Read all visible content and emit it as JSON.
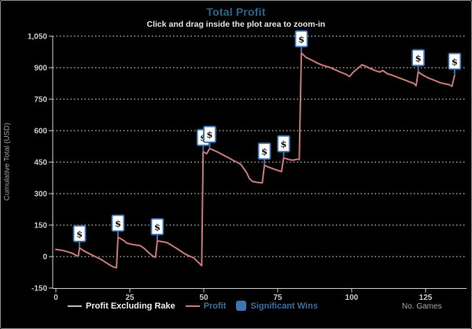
{
  "header": {
    "title": "Total Profit",
    "subtitle": "Click and drag inside the plot area to zoom-in"
  },
  "colors": {
    "background": "#000000",
    "title_blue": "#2c6489",
    "profit_line": "#c67878",
    "excluding_rake_line": "#b9b9b9",
    "significant_wins_blue": "#3d74b2",
    "marker_border": "#3c6fad",
    "marker_fill": "#ffffff",
    "grid": "#f2f2f2",
    "axis": "#cdcdcd",
    "tick_text": "#c9c9c9",
    "legend_link_text": "#3a6fa0"
  },
  "legend": {
    "items": [
      {
        "label": "Profit Excluding Rake",
        "swatch": "line-gray"
      },
      {
        "label": "Profit",
        "swatch": "line-salmon"
      },
      {
        "label": "Significant Wins",
        "swatch": "square-blue"
      }
    ]
  },
  "chart_data": {
    "type": "line",
    "title": "Total Profit",
    "subtitle": "Click and drag inside the plot area to zoom-in",
    "xlabel": "No. Games",
    "ylabel": "Cumulative Total (USD)",
    "xlim": [
      0,
      138
    ],
    "ylim": [
      -150,
      1050
    ],
    "x_ticks": [
      0,
      25,
      50,
      75,
      100,
      125
    ],
    "y_ticks": [
      -150,
      0,
      150,
      300,
      450,
      600,
      750,
      900,
      1050
    ],
    "grid": "horizontal-dotted-white",
    "legend_position": "bottom",
    "series": [
      {
        "name": "Profit Excluding Rake",
        "type": "line",
        "color": "#b9b9b9",
        "visible": false,
        "points": []
      },
      {
        "name": "Profit",
        "type": "line",
        "color": "#c67878",
        "visible": true,
        "points": [
          [
            0,
            34
          ],
          [
            1.5,
            31
          ],
          [
            3,
            27
          ],
          [
            4.5,
            21
          ],
          [
            6,
            13
          ],
          [
            7,
            4
          ],
          [
            7.6,
            3
          ],
          [
            8,
            42
          ],
          [
            9.5,
            27
          ],
          [
            11,
            16
          ],
          [
            13,
            2
          ],
          [
            14.5,
            -8
          ],
          [
            16,
            -20
          ],
          [
            18,
            -38
          ],
          [
            19.5,
            -50
          ],
          [
            20.5,
            -53
          ],
          [
            21,
            92
          ],
          [
            22,
            85
          ],
          [
            23,
            76
          ],
          [
            24,
            64
          ],
          [
            25.5,
            59
          ],
          [
            27,
            55
          ],
          [
            28.5,
            52
          ],
          [
            30,
            38
          ],
          [
            31.5,
            17
          ],
          [
            33,
            0
          ],
          [
            33.7,
            -3
          ],
          [
            34.3,
            75
          ],
          [
            36,
            71
          ],
          [
            37.5,
            67
          ],
          [
            39,
            55
          ],
          [
            40.5,
            42
          ],
          [
            42,
            28
          ],
          [
            43.5,
            14
          ],
          [
            45,
            3
          ],
          [
            46.5,
            -5
          ],
          [
            48,
            -25
          ],
          [
            49.3,
            -43
          ],
          [
            49.8,
            500
          ],
          [
            51,
            490
          ],
          [
            52,
            515
          ],
          [
            53.5,
            506
          ],
          [
            55,
            496
          ],
          [
            57,
            481
          ],
          [
            58.5,
            470
          ],
          [
            60,
            458
          ],
          [
            61.5,
            448
          ],
          [
            62.5,
            440
          ],
          [
            63.5,
            420
          ],
          [
            64.5,
            400
          ],
          [
            65.5,
            370
          ],
          [
            66.5,
            358
          ],
          [
            68,
            354
          ],
          [
            69.8,
            351
          ],
          [
            70.5,
            435
          ],
          [
            72,
            426
          ],
          [
            73.5,
            418
          ],
          [
            75,
            411
          ],
          [
            76.3,
            405
          ],
          [
            77,
            470
          ],
          [
            78.5,
            464
          ],
          [
            80,
            459
          ],
          [
            81.5,
            464
          ],
          [
            82.3,
            462
          ],
          [
            83,
            970
          ],
          [
            84.5,
            950
          ],
          [
            86.5,
            936
          ],
          [
            88.5,
            921
          ],
          [
            90.5,
            910
          ],
          [
            92.5,
            902
          ],
          [
            94.5,
            890
          ],
          [
            96.5,
            877
          ],
          [
            98,
            869
          ],
          [
            99.3,
            858
          ],
          [
            100.5,
            878
          ],
          [
            102,
            896
          ],
          [
            103.5,
            914
          ],
          [
            105,
            905
          ],
          [
            106.5,
            895
          ],
          [
            108,
            886
          ],
          [
            109.5,
            879
          ],
          [
            110.5,
            887
          ],
          [
            112,
            872
          ],
          [
            113.5,
            865
          ],
          [
            115,
            857
          ],
          [
            116.5,
            849
          ],
          [
            118,
            841
          ],
          [
            119.5,
            833
          ],
          [
            121,
            825
          ],
          [
            121.8,
            814
          ],
          [
            122.5,
            880
          ],
          [
            124,
            865
          ],
          [
            125.5,
            854
          ],
          [
            127,
            845
          ],
          [
            128.5,
            837
          ],
          [
            130,
            828
          ],
          [
            131.5,
            823
          ],
          [
            133,
            819
          ],
          [
            133.9,
            811
          ],
          [
            134.8,
            863
          ]
        ]
      },
      {
        "name": "Significant Wins",
        "type": "marker",
        "symbol": "$",
        "color": "#3d74b2",
        "points": [
          [
            8,
            42
          ],
          [
            21,
            92
          ],
          [
            34.3,
            75
          ],
          [
            49.8,
            500
          ],
          [
            52,
            515
          ],
          [
            70.5,
            435
          ],
          [
            77,
            470
          ],
          [
            83,
            970
          ],
          [
            122.5,
            880
          ],
          [
            134.8,
            863
          ]
        ]
      }
    ]
  }
}
